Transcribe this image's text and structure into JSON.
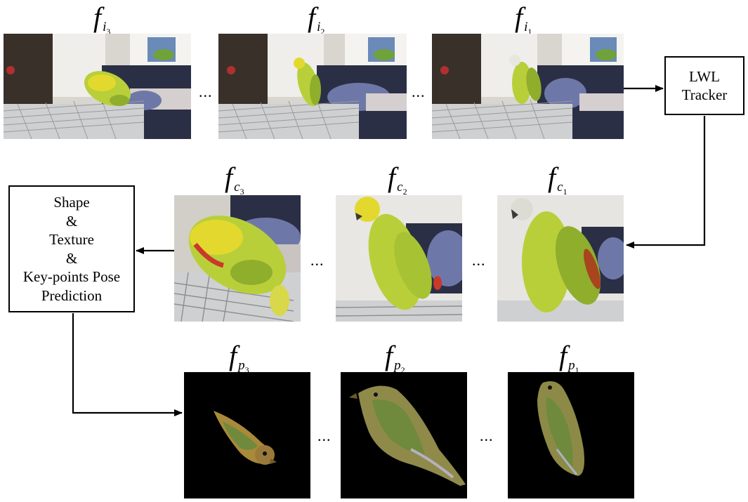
{
  "colors": {
    "line": "#000000",
    "background": "#ffffff",
    "render_background": "#000000",
    "parrot_green": "#b9cf3a",
    "parrot_yellow": "#e3d92e",
    "sofa": "#2b2f45",
    "cushion": "#6e78a8"
  },
  "input_frames": {
    "labels": [
      {
        "base": "f",
        "sub": "i",
        "subsub": "3"
      },
      {
        "base": "f",
        "sub": "i",
        "subsub": "2"
      },
      {
        "base": "f",
        "sub": "i",
        "subsub": "1"
      }
    ],
    "ellipsis": "..."
  },
  "cropped_frames": {
    "labels": [
      {
        "base": "f",
        "sub": "c",
        "subsub": "3"
      },
      {
        "base": "f",
        "sub": "c",
        "subsub": "2"
      },
      {
        "base": "f",
        "sub": "c",
        "subsub": "1"
      }
    ],
    "ellipsis": "..."
  },
  "predicted_frames": {
    "labels": [
      {
        "base": "f",
        "sub": "p",
        "subsub": "3"
      },
      {
        "base": "f",
        "sub": "p",
        "subsub": "2"
      },
      {
        "base": "f",
        "sub": "p",
        "subsub": "1"
      }
    ],
    "ellipsis": "..."
  },
  "tracker_box": {
    "lines": [
      "LWL",
      "Tracker"
    ]
  },
  "prediction_box": {
    "lines": [
      "Shape",
      "&",
      "Texture",
      "&",
      "Key-points Pose",
      "Prediction"
    ]
  }
}
